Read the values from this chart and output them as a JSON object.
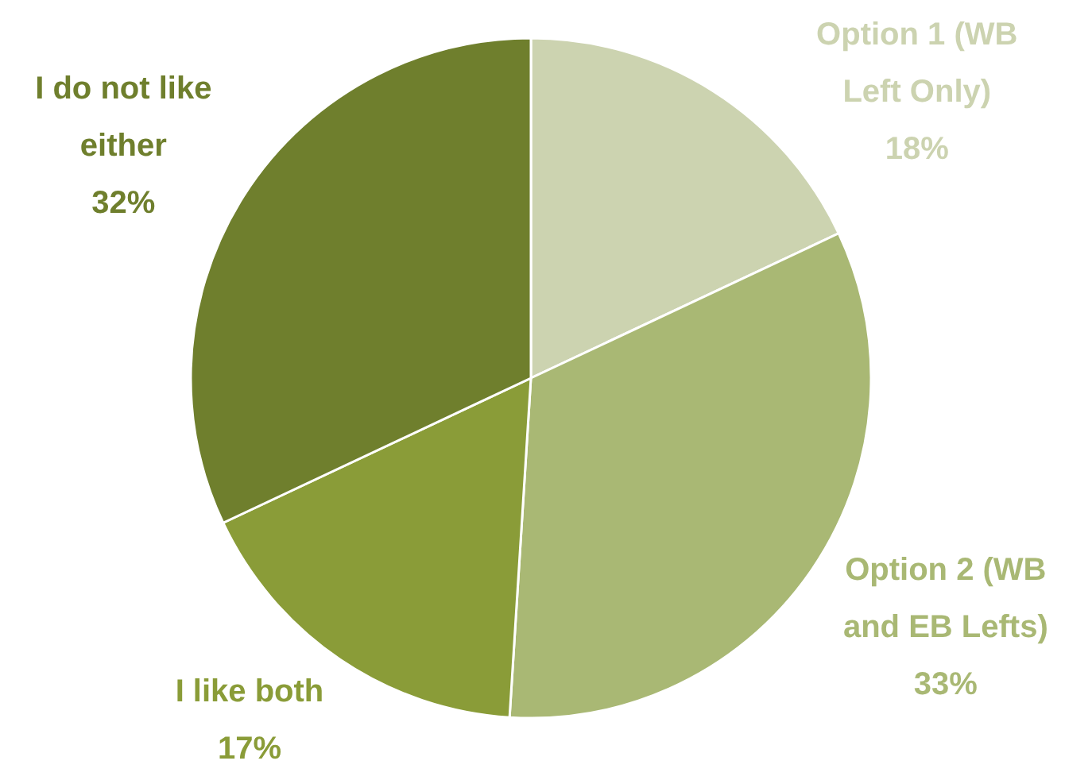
{
  "chart_data": {
    "type": "pie",
    "categories": [
      "Option 1 (WB Left Only)",
      "Option 2 (WB and EB Lefts)",
      "I like both",
      "I do not like either"
    ],
    "values": [
      18,
      33,
      17,
      32
    ],
    "value_labels": [
      "18%",
      "33%",
      "17%",
      "32%"
    ],
    "colors": [
      "#ccd3b0",
      "#a9b874",
      "#8a9c38",
      "#6f7f2d"
    ]
  }
}
